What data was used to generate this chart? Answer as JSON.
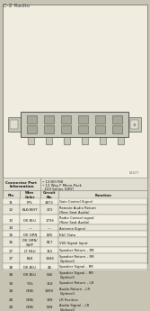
{
  "title": "C-2 Radio",
  "connector_info_label": "Connector Part\nInformation",
  "connector_details": [
    "• 12365788",
    "• 12 Way F Micro-Pack",
    "  100 Series (GRY)"
  ],
  "headers": [
    "Pin",
    "Wire\nColor",
    "Circuit\nNo.",
    "Function"
  ],
  "rows": [
    [
      "11",
      "PPL",
      "1872",
      "Gain Control Signal"
    ],
    [
      "12",
      "BLK/WHT",
      "372",
      "Remote Audio Return\n(Rear Seat Audio)"
    ],
    [
      "13",
      "DK BLU",
      "1796",
      "Radio Control signal\n(Rear Seat Audio)"
    ],
    [
      "14",
      "—",
      "—",
      "Antenna Signal"
    ],
    [
      "15",
      "DK GRN",
      "835",
      "E&C Data"
    ],
    [
      "16",
      "DK GRN/\nWHT",
      "817",
      "VSS Signal Input"
    ],
    [
      "17",
      "LT BLU",
      "115",
      "Speaker Return – RR"
    ],
    [
      "17",
      "BLK",
      "1946",
      "Speaker Return – RR\n(Uplevel)"
    ],
    [
      "18",
      "DK BLU",
      "46",
      "Speaker Signal – RR"
    ],
    [
      "18",
      "DK BLU",
      "546",
      "Speaker Signal – RR\n(Uplevel)"
    ],
    [
      "19",
      "YEL",
      "118",
      "Speaker Return – LR"
    ],
    [
      "19",
      "GRN",
      "1999",
      "Audio Return – LR\n(Uplevel)"
    ],
    [
      "20",
      "GRN",
      "199",
      "LR Positive"
    ],
    [
      "20",
      "GRN",
      "599",
      "Audio Signal – LR\n(Uplevel)"
    ]
  ],
  "fig_bg": "#c8c4b4",
  "outer_bg": "#f0ede0",
  "header_bg": "#e0ddd0",
  "row_bg_even": "#f0ede0",
  "row_bg_odd": "#e8e5d8",
  "border_color": "#888880",
  "text_color": "#111111",
  "title_color": "#444444",
  "diag_bg": "#f0ede0",
  "connector_fill": "#c8c8b8",
  "connector_edge": "#555555",
  "slot_fill": "#a8a89a",
  "part_number": "82477"
}
